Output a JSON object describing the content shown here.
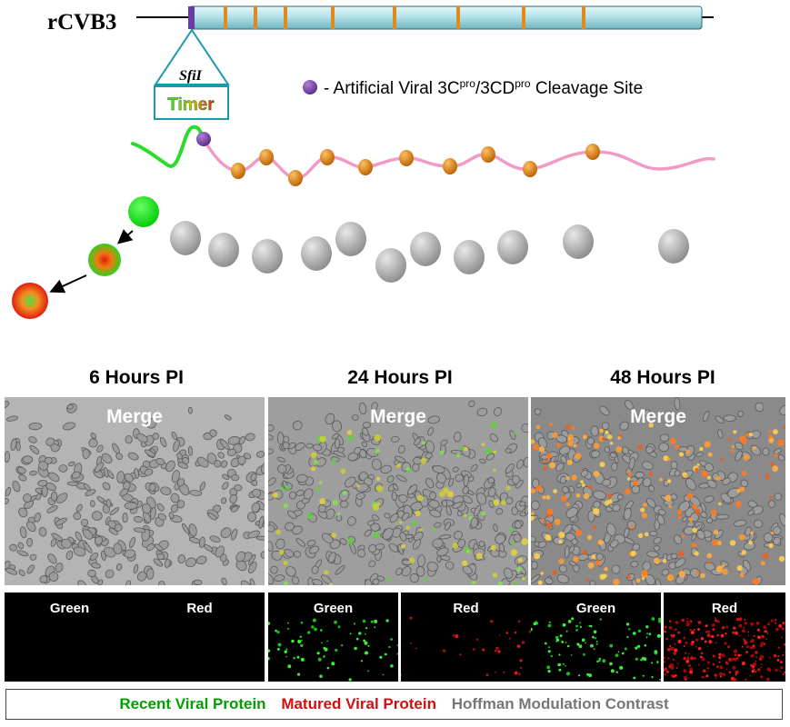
{
  "diagram": {
    "genome_label": "rCVB3",
    "insert_site_label": "SfiI",
    "insert_label": "Timer",
    "cleavage_legend": "- Artificial Viral 3C",
    "cleavage_sup1": "pro",
    "cleavage_mid": "/3CD",
    "cleavage_sup2": "pro",
    "cleavage_tail": " Cleavage Site"
  },
  "panels": {
    "col1_title": "6 Hours PI",
    "col2_title": "24 Hours PI",
    "col3_title": "48 Hours PI",
    "merge_label": "Merge",
    "green_label": "Green",
    "red_label": "Red"
  },
  "legend": {
    "recent": "Recent Viral Protein",
    "matured": "Matured Viral Protein",
    "hoffman": "Hoffman Modulation Contrast"
  },
  "colors": {
    "genome_fill": "#aee0e6",
    "cleavage_site": "#7a3fa0",
    "protease_site": "#e08a1e",
    "polyprotein": "#f29ac6",
    "timer_green": "#22dd22",
    "matured_red": "#d01010",
    "recent_green": "#00a000",
    "hoffman_gray": "#777777"
  }
}
